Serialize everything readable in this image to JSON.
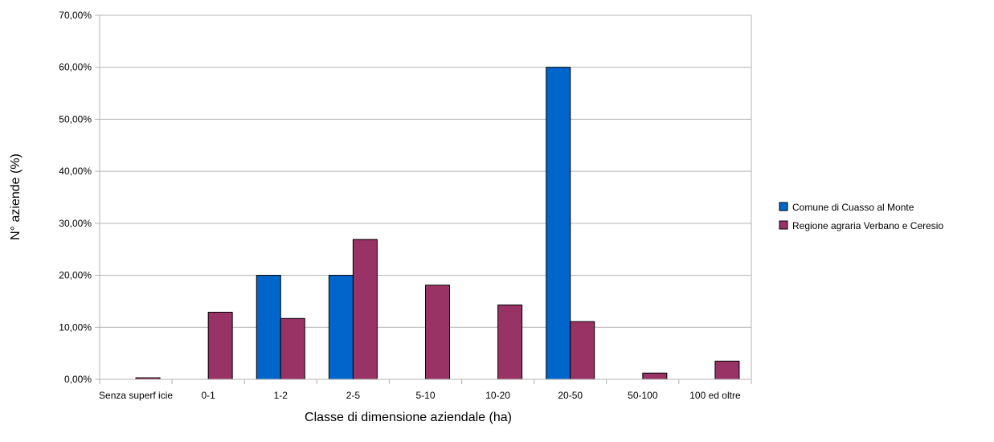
{
  "chart_data": {
    "type": "bar",
    "title": "",
    "xlabel": "Classe di dimensione aziendale (ha)",
    "ylabel": "N° aziende (%)",
    "ylim": [
      0,
      70
    ],
    "yticks": [
      "0,00%",
      "10,00%",
      "20,00%",
      "30,00%",
      "40,00%",
      "50,00%",
      "60,00%",
      "70,00%"
    ],
    "categories": [
      "Senza superf icie",
      "0-1",
      "1-2",
      "2-5",
      "5-10",
      "10-20",
      "20-50",
      "50-100",
      "100 ed oltre"
    ],
    "series": [
      {
        "name": "Comune di Cuasso al Monte",
        "color": "#0066cc",
        "values": [
          0,
          0,
          20,
          20,
          0,
          0,
          60,
          0,
          0
        ]
      },
      {
        "name": "Regione agraria Verbano e Ceresio",
        "color": "#993366",
        "values": [
          0.3,
          12.9,
          11.7,
          26.9,
          18.1,
          14.3,
          11.1,
          1.2,
          3.5
        ]
      }
    ],
    "grid": true,
    "legend_position": "right"
  }
}
